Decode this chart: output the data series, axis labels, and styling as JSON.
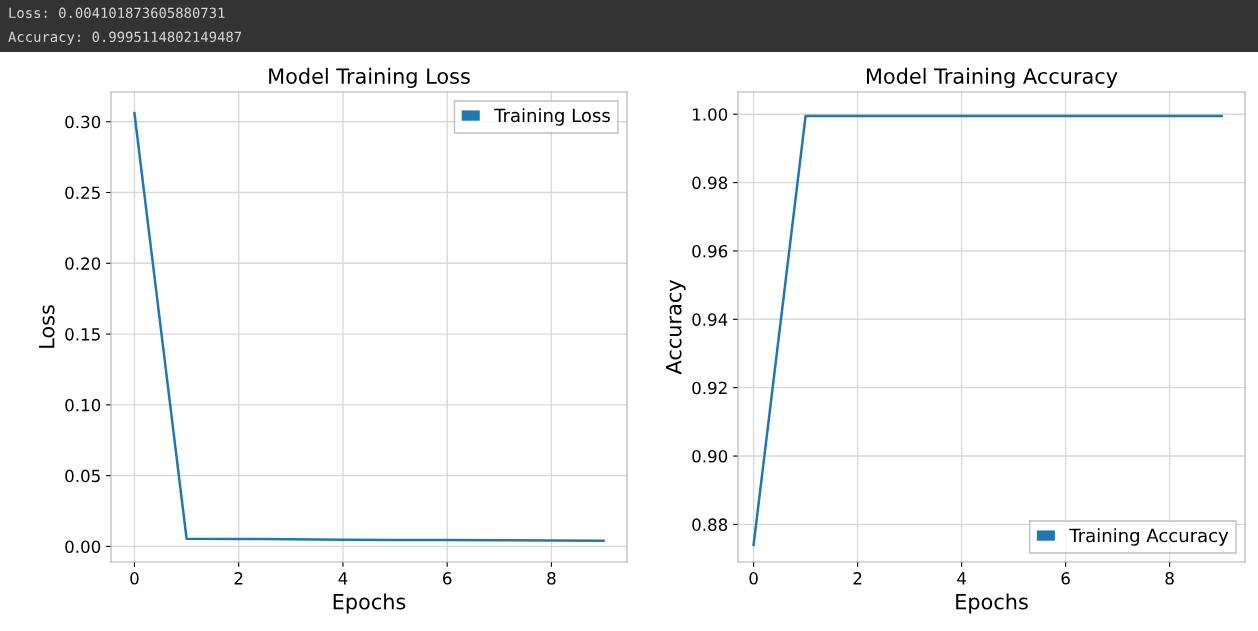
{
  "chart_data": [
    {
      "type": "line",
      "title": "Model Training Loss",
      "xlabel": "Epochs",
      "ylabel": "Loss",
      "annotations": [
        "Loss: 0.004101873605880731",
        "Accuracy: 0.9995114802149487"
      ],
      "x": [
        0,
        1,
        2,
        3,
        4,
        5,
        6,
        7,
        8,
        9
      ],
      "series": [
        {
          "name": "Training Loss",
          "color": "#1f77b4",
          "values": [
            0.306,
            0.0055,
            0.0053,
            0.005,
            0.0048,
            0.0046,
            0.0045,
            0.0044,
            0.0042,
            0.0041
          ]
        }
      ],
      "xlim": [
        -0.45,
        9.45
      ],
      "xticks": [
        0,
        2,
        4,
        6,
        8
      ],
      "ylim": [
        -0.011,
        0.321
      ],
      "yticks": [
        {
          "value": 0,
          "label": "0.00"
        },
        0.05,
        {
          "value": 0.1,
          "label": "0.10"
        },
        0.15,
        {
          "value": 0.2,
          "label": "0.20"
        },
        0.25,
        {
          "value": 0.3,
          "label": "0.30"
        }
      ],
      "grid": true,
      "legend": "top right",
      "marker": "none",
      "line_style": "solid"
    },
    {
      "type": "line",
      "title": "Model Training Accuracy",
      "xlabel": "Epochs",
      "ylabel": "Accuracy",
      "x": [
        0,
        1,
        2,
        3,
        4,
        5,
        6,
        7,
        8,
        9
      ],
      "series": [
        {
          "name": "Training Accuracy",
          "color": "#1f77b4",
          "values": [
            0.874,
            0.9995,
            0.9995,
            0.9995,
            0.9995,
            0.9995,
            0.9995,
            0.9995,
            0.9995,
            0.9995
          ]
        }
      ],
      "xlim": [
        -0.3,
        9.45
      ],
      "xticks": [
        0,
        2,
        4,
        6,
        8
      ],
      "ylim": [
        0.869,
        1.0065
      ],
      "yticks": [
        0.88,
        {
          "value": 0.9,
          "label": "0.90"
        },
        0.92,
        0.94,
        0.96,
        0.98,
        {
          "value": 1.0,
          "label": "1.00"
        }
      ],
      "grid": true,
      "legend": "bottom right",
      "marker": "none",
      "line_style": "solid"
    }
  ]
}
